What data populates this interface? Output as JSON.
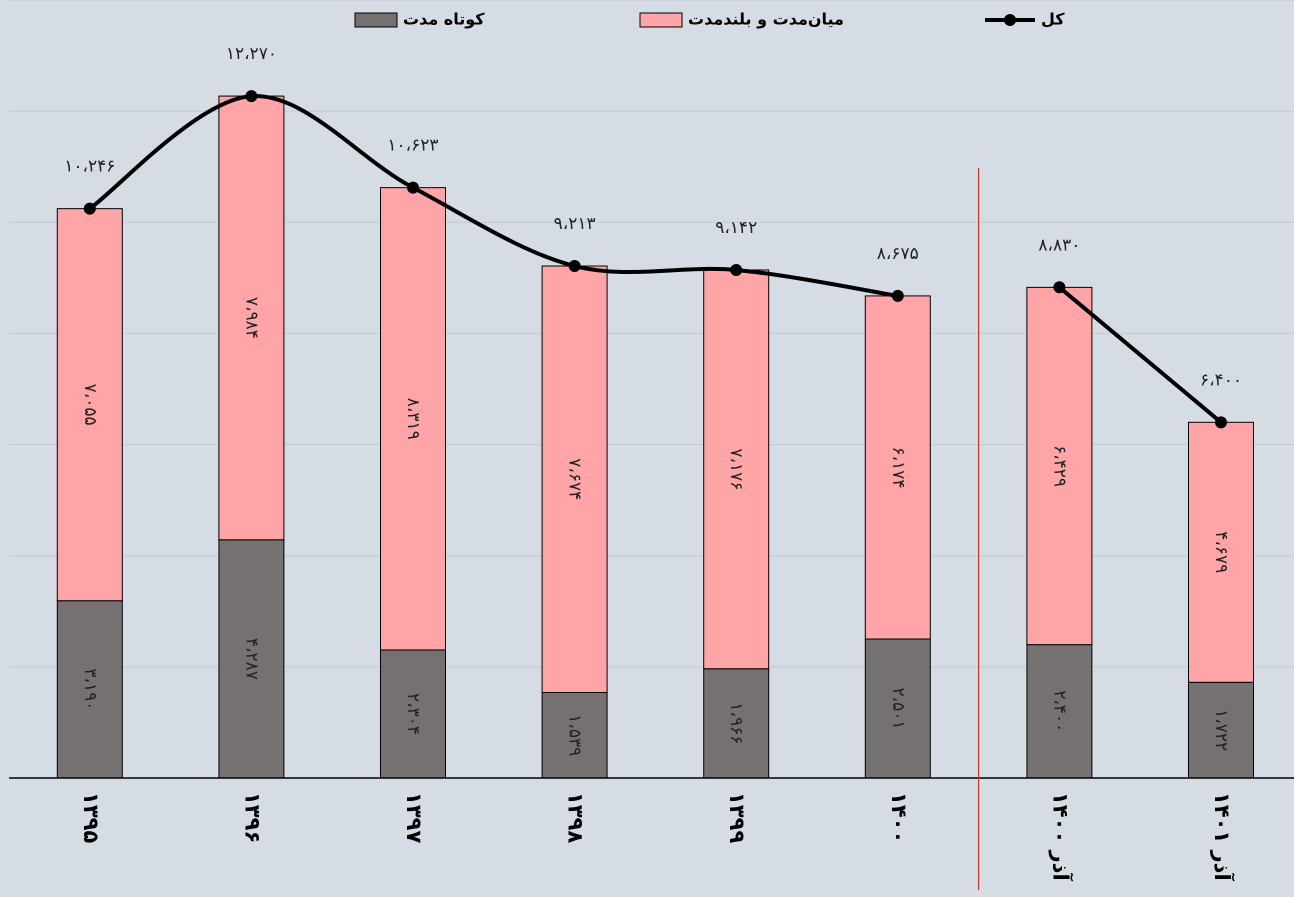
{
  "chart_data": {
    "type": "stacked-bar-line",
    "categories": [
      "۱۳۹۵",
      "۱۳۹۶",
      "۱۳۹۷",
      "۱۳۹۸",
      "۱۳۹۹",
      "۱۴۰۰",
      "آذر ۱۴۰۰",
      "آذر ۱۴۰۱"
    ],
    "series": [
      {
        "name": "کوتاه مدت",
        "color": "#767171",
        "kind": "bar",
        "values": [
          3190,
          4287,
          2304,
          1539,
          1966,
          2501,
          2400,
          1722
        ],
        "value_labels": [
          "۳،۱۹۰",
          "۴،۲۸۷",
          "۲،۳۰۴",
          "۱،۵۳۹",
          "۱،۹۶۶",
          "۲،۵۰۱",
          "۲،۴۰۰",
          "۱،۷۲۲"
        ]
      },
      {
        "name": "میان‌مدت و بلندمدت",
        "color": "#ffa5a8",
        "kind": "bar",
        "values": [
          7055,
          7984,
          8319,
          7674,
          7176,
          6174,
          6429,
          4679
        ],
        "value_labels": [
          "۷،۰۵۵",
          "۷،۹۸۴",
          "۸،۳۱۹",
          "۷،۶۷۴",
          "۷،۱۷۶",
          "۶،۱۷۴",
          "۶،۴۲۹",
          "۴،۶۷۹"
        ]
      },
      {
        "name": "کل",
        "color": "#000000",
        "kind": "line",
        "values": [
          10246,
          12270,
          10623,
          9213,
          9142,
          8675,
          8830,
          6400
        ],
        "value_labels": [
          "۱۰،۲۴۶",
          "۱۲،۲۷۰",
          "۱۰،۶۲۳",
          "۹،۲۱۳",
          "۹،۱۴۲",
          "۸،۶۷۵",
          "۸،۸۳۰",
          "۶،۴۰۰"
        ]
      }
    ],
    "ylim": [
      0,
      14000
    ],
    "yticks": [
      0,
      2000,
      4000,
      6000,
      8000,
      10000,
      12000,
      14000
    ],
    "grid": true
  }
}
